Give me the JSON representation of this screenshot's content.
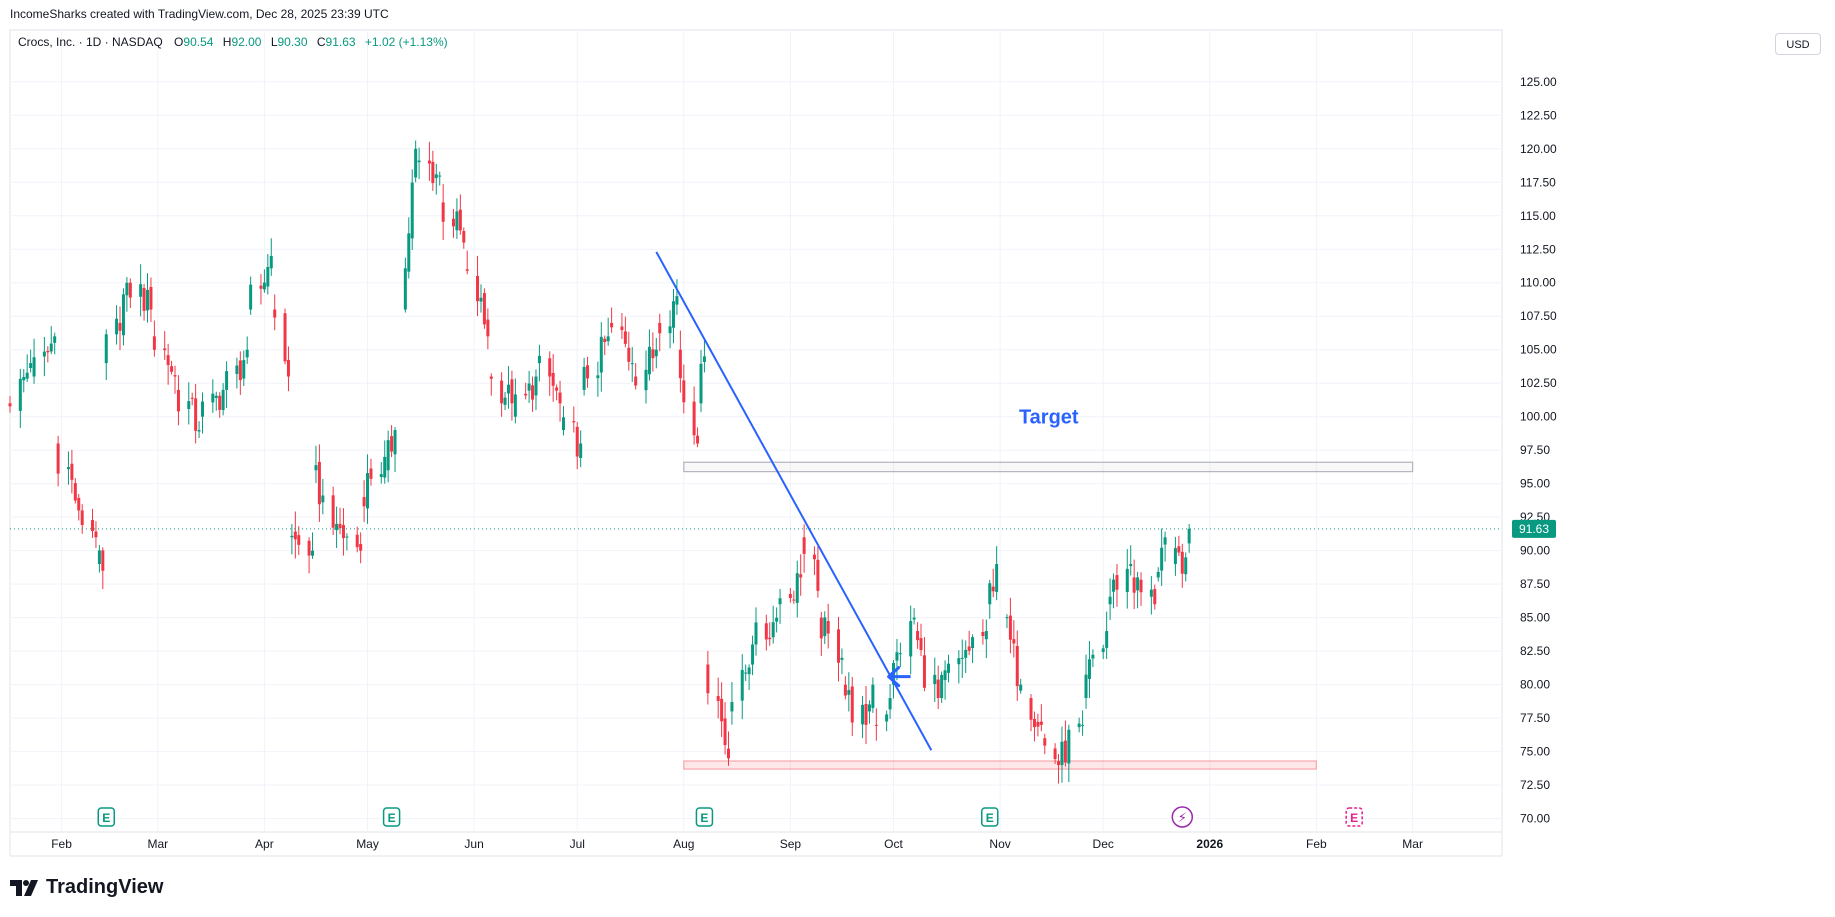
{
  "attribution": "IncomeSharks created with TradingView.com, Dec 28, 2025 23:39 UTC",
  "legend": {
    "symbol": "Crocs, Inc. · 1D · NASDAQ",
    "open_label": "O",
    "open": "90.54",
    "high_label": "H",
    "high": "92.00",
    "low_label": "L",
    "low": "90.30",
    "close_label": "C",
    "close": "91.63",
    "change": "+1.02 (+1.13%)"
  },
  "currency": "USD",
  "brand": "TradingView",
  "colors": {
    "up": "#089981",
    "down": "#f23645",
    "trendline": "#2962ff",
    "grid": "#f0f3fa",
    "axis_text": "#131722",
    "event_green": "#089981",
    "event_magenta": "#e91e8c",
    "event_purple": "#9c27b0"
  },
  "chart_data": {
    "type": "candlestick",
    "y_ticks": [
      "125.00",
      "122.50",
      "120.00",
      "117.50",
      "115.00",
      "112.50",
      "110.00",
      "107.50",
      "105.00",
      "102.50",
      "100.00",
      "97.50",
      "95.00",
      "92.50",
      "90.00",
      "87.50",
      "85.00",
      "82.50",
      "80.00",
      "77.50",
      "75.00",
      "72.50",
      "70.00"
    ],
    "ylim": [
      69,
      127
    ],
    "x_ticks": [
      {
        "label": "Feb",
        "date": "2025-02-01"
      },
      {
        "label": "Mar",
        "date": "2025-03-01"
      },
      {
        "label": "Apr",
        "date": "2025-04-01"
      },
      {
        "label": "May",
        "date": "2025-05-01"
      },
      {
        "label": "Jun",
        "date": "2025-06-01"
      },
      {
        "label": "Jul",
        "date": "2025-07-01"
      },
      {
        "label": "Aug",
        "date": "2025-08-01"
      },
      {
        "label": "Sep",
        "date": "2025-09-01"
      },
      {
        "label": "Oct",
        "date": "2025-10-01"
      },
      {
        "label": "Nov",
        "date": "2025-11-01"
      },
      {
        "label": "Dec",
        "date": "2025-12-01"
      },
      {
        "label": "2026",
        "date": "2026-01-01"
      },
      {
        "label": "Feb",
        "date": "2026-02-01"
      },
      {
        "label": "Mar",
        "date": "2026-03-01"
      }
    ],
    "xlim": [
      "2025-01-17",
      "2026-03-27"
    ],
    "last_price": 91.63,
    "last_price_label": "91.63",
    "anchors": [
      [
        "2025-01-17",
        101,
        104
      ],
      [
        "2025-01-24",
        103,
        106
      ],
      [
        "2025-01-31",
        98,
        93
      ],
      [
        "2025-02-07",
        93,
        91
      ],
      [
        "2025-02-12",
        89,
        88.5
      ],
      [
        "2025-02-14",
        104,
        110
      ],
      [
        "2025-02-21",
        110,
        108
      ],
      [
        "2025-02-28",
        106,
        103
      ],
      [
        "2025-03-07",
        102,
        99
      ],
      [
        "2025-03-14",
        100,
        102
      ],
      [
        "2025-03-21",
        102,
        105
      ],
      [
        "2025-03-28",
        108,
        112
      ],
      [
        "2025-04-04",
        108,
        103
      ],
      [
        "2025-04-09",
        91,
        90
      ],
      [
        "2025-04-16",
        96,
        92
      ],
      [
        "2025-04-23",
        92,
        90
      ],
      [
        "2025-04-30",
        94,
        97
      ],
      [
        "2025-05-07",
        96,
        99
      ],
      [
        "2025-05-12",
        108,
        120
      ],
      [
        "2025-05-16",
        119,
        118
      ],
      [
        "2025-05-23",
        116,
        113
      ],
      [
        "2025-05-30",
        111,
        106
      ],
      [
        "2025-06-06",
        103,
        101
      ],
      [
        "2025-06-13",
        100,
        103
      ],
      [
        "2025-06-20",
        104,
        101
      ],
      [
        "2025-06-27",
        99,
        98
      ],
      [
        "2025-07-03",
        102,
        106
      ],
      [
        "2025-07-11",
        107,
        104
      ],
      [
        "2025-07-18",
        103,
        105
      ],
      [
        "2025-07-25",
        107,
        109
      ],
      [
        "2025-07-31",
        105,
        98
      ],
      [
        "2025-08-06",
        101,
        104.5
      ],
      [
        "2025-08-08",
        81.5,
        74.5
      ],
      [
        "2025-08-15",
        78,
        83
      ],
      [
        "2025-08-22",
        83,
        85
      ],
      [
        "2025-08-29",
        86,
        88
      ],
      [
        "2025-09-05",
        91,
        87
      ],
      [
        "2025-09-10",
        85,
        82
      ],
      [
        "2025-09-17",
        80,
        77
      ],
      [
        "2025-09-24",
        78,
        80
      ],
      [
        "2025-09-26",
        77,
        79
      ],
      [
        "2025-10-01",
        80,
        85
      ],
      [
        "2025-10-08",
        84,
        79
      ],
      [
        "2025-10-15",
        79,
        82
      ],
      [
        "2025-10-22",
        82,
        84
      ],
      [
        "2025-10-29",
        86,
        89
      ],
      [
        "2025-11-03",
        85,
        80
      ],
      [
        "2025-11-10",
        79,
        77
      ],
      [
        "2025-11-14",
        76,
        74
      ],
      [
        "2025-11-19",
        74,
        77
      ],
      [
        "2025-11-26",
        79,
        84
      ],
      [
        "2025-12-03",
        86,
        89
      ],
      [
        "2025-12-10",
        88,
        86
      ],
      [
        "2025-12-17",
        88,
        91
      ],
      [
        "2025-12-22",
        89,
        89.5
      ],
      [
        "2025-12-26",
        90.54,
        91.63
      ]
    ],
    "drawings": {
      "trendline": {
        "from": [
          "2025-07-24",
          112.3
        ],
        "to": [
          "2025-10-12",
          75.1
        ]
      },
      "target_zone": {
        "from": "2025-08-01",
        "to": "2026-03-01",
        "low": 95.9,
        "high": 96.6
      },
      "support_zone": {
        "from": "2025-08-01",
        "to": "2026-02-01",
        "low": 73.7,
        "high": 74.3
      },
      "arrow": {
        "date": "2025-09-29",
        "price": 80.6
      },
      "target_label": {
        "text": "Target",
        "date": "2025-11-03",
        "price": 100
      }
    },
    "events": [
      {
        "date": "2025-02-14",
        "kind": "earnings",
        "glyph": "E",
        "color": "green"
      },
      {
        "date": "2025-05-08",
        "kind": "earnings",
        "glyph": "E",
        "color": "green"
      },
      {
        "date": "2025-08-07",
        "kind": "earnings",
        "glyph": "E",
        "color": "green"
      },
      {
        "date": "2025-10-29",
        "kind": "earnings",
        "glyph": "E",
        "color": "green"
      },
      {
        "date": "2025-12-24",
        "kind": "flash",
        "glyph": "⚡",
        "color": "purple"
      },
      {
        "date": "2026-02-12",
        "kind": "earnings-upcoming",
        "glyph": "E",
        "color": "magenta"
      }
    ]
  }
}
